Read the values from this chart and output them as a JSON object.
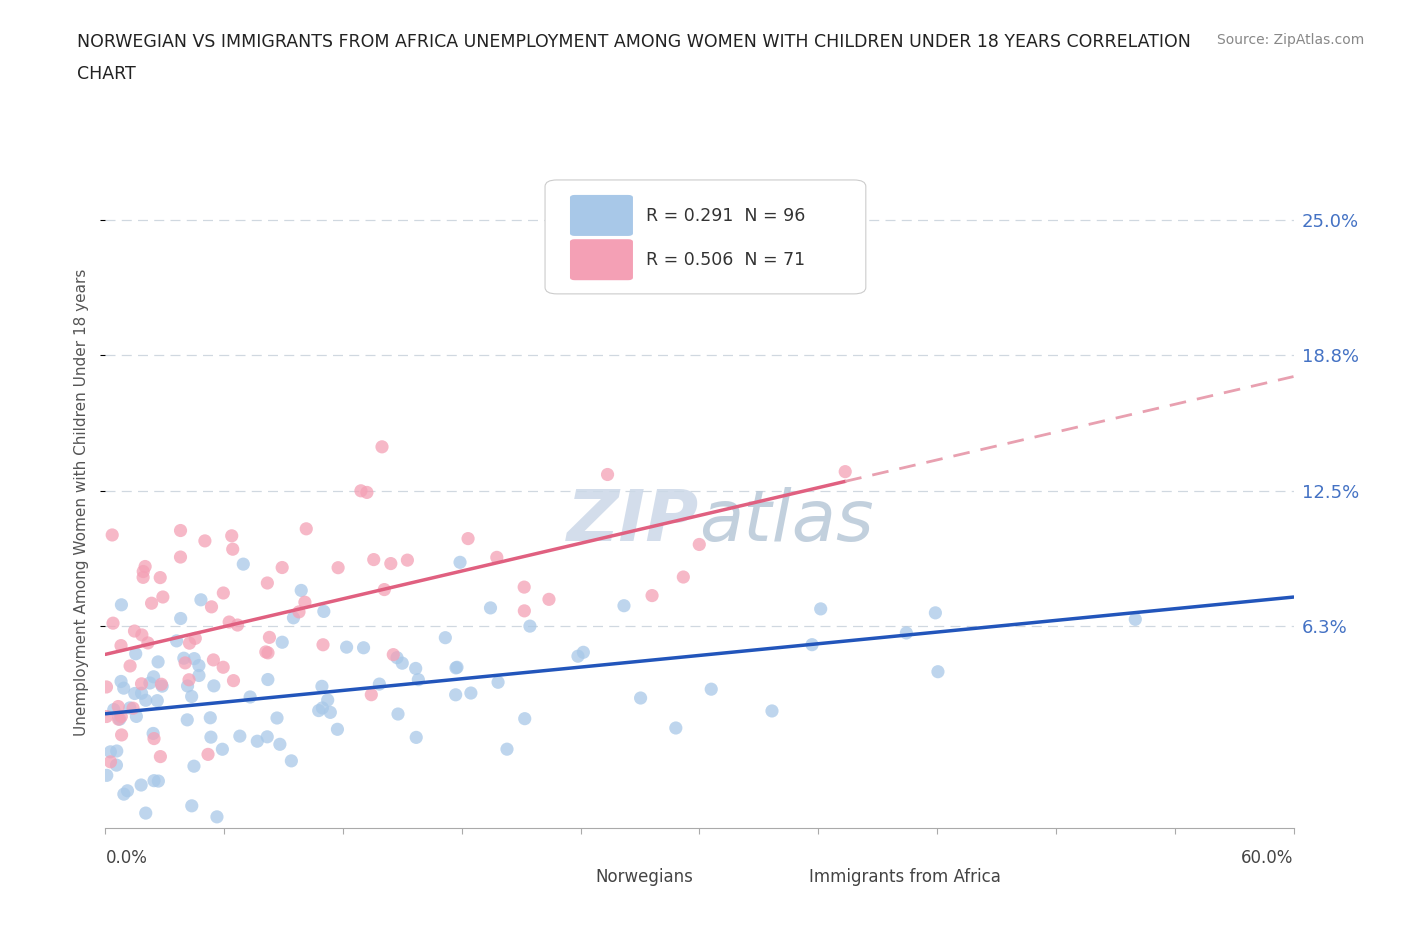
{
  "title_line1": "NORWEGIAN VS IMMIGRANTS FROM AFRICA UNEMPLOYMENT AMONG WOMEN WITH CHILDREN UNDER 18 YEARS CORRELATION",
  "title_line2": "CHART",
  "source": "Source: ZipAtlas.com",
  "xmin": 0.0,
  "xmax": 60.0,
  "ymin": -3.0,
  "ymax": 27.0,
  "ytick_vals": [
    6.3,
    12.5,
    18.8,
    25.0
  ],
  "ytick_labels": [
    "6.3%",
    "12.5%",
    "18.8%",
    "25.0%"
  ],
  "ylabel": "Unemployment Among Women with Children Under 18 years",
  "watermark_zip": "ZIP",
  "watermark_atlas": "atlas",
  "norwegian_color": "#a8c8e8",
  "african_color": "#f4a0b5",
  "norwegian_line_color": "#2255bb",
  "african_line_color": "#e06080",
  "african_dash_color": "#e8a0b0",
  "R_norwegian": 0.291,
  "N_norwegian": 96,
  "R_african": 0.506,
  "N_african": 71,
  "legend_label_nor": "R = 0.291  N = 96",
  "legend_label_afr": "R = 0.506  N = 71",
  "bottom_legend_nor": "Norwegians",
  "bottom_legend_afr": "Immigrants from Africa",
  "nor_seed": 42,
  "afr_seed": 99
}
